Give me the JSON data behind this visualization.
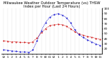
{
  "title": "Milwaukee Weather Outdoor Temperature (vs) THSW Index per Hour (Last 24 Hours)",
  "hours": [
    0,
    1,
    2,
    3,
    4,
    5,
    6,
    7,
    8,
    9,
    10,
    11,
    12,
    13,
    14,
    15,
    16,
    17,
    18,
    19,
    20,
    21,
    22,
    23
  ],
  "temp": [
    36,
    35,
    34,
    34,
    33,
    33,
    32,
    34,
    42,
    52,
    60,
    66,
    68,
    69,
    68,
    65,
    60,
    54,
    50,
    47,
    45,
    43,
    41,
    39
  ],
  "thsw": [
    18,
    17,
    16,
    15,
    14,
    14,
    13,
    18,
    36,
    56,
    72,
    83,
    88,
    90,
    87,
    82,
    72,
    58,
    48,
    43,
    38,
    34,
    30,
    27
  ],
  "temp_color": "#cc0000",
  "thsw_color": "#0000cc",
  "background": "#ffffff",
  "grid_color": "#888888",
  "ylim": [
    10,
    100
  ],
  "yticks_right": [
    20,
    30,
    40,
    50,
    60,
    70,
    80,
    90,
    100
  ],
  "title_fontsize": 3.8,
  "tick_fontsize": 3.2,
  "linewidth": 0.5,
  "markersize": 1.0
}
